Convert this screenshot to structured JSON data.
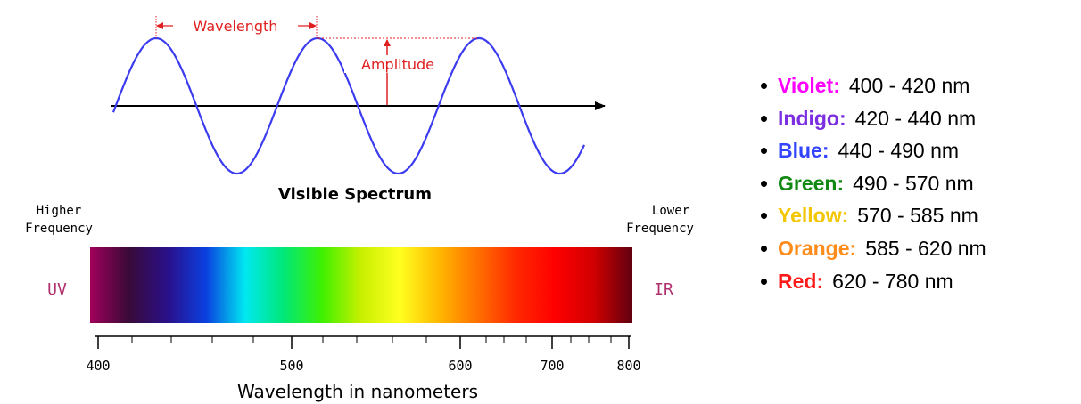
{
  "wave": {
    "wavelength_label": "Wavelength",
    "amplitude_label": "Amplitude",
    "colors": {
      "wave": "#3b3bf0",
      "annotation": "#e02020",
      "axis": "#000000"
    }
  },
  "spectrum": {
    "title": "Visible Spectrum",
    "higher_frequency": [
      "Higher",
      "Frequency"
    ],
    "lower_frequency": [
      "Lower",
      "Frequency"
    ],
    "uv_label": "UV",
    "ir_label": "IR",
    "uv_ir_color": "#b0306e",
    "xlabel": "Wavelength in nanometers",
    "ticks": [
      "400",
      "500",
      "600",
      "700",
      "800"
    ],
    "gradient_colors": [
      "#a0005a",
      "#3a0a38",
      "#2a108a",
      "#0a40e0",
      "#00e8f0",
      "#00e878",
      "#40f000",
      "#c8f000",
      "#ffff20",
      "#ffb800",
      "#ff7000",
      "#ff2800",
      "#ff0000",
      "#d00000",
      "#600010"
    ]
  },
  "legend": [
    {
      "name": "Violet:",
      "range": "400 - 420 nm",
      "color": "#ff00ff"
    },
    {
      "name": "Indigo:",
      "range": "420 - 440 nm",
      "color": "#7b2fe0"
    },
    {
      "name": "Blue:",
      "range": "440 - 490 nm",
      "color": "#3344ff"
    },
    {
      "name": "Green:",
      "range": "490 - 570 nm",
      "color": "#118811"
    },
    {
      "name": "Yellow:",
      "range": "570 - 585 nm",
      "color": "#f2c600"
    },
    {
      "name": "Orange:",
      "range": "585 - 620 nm",
      "color": "#ff8c1a"
    },
    {
      "name": "Red:",
      "range": "620 - 780 nm",
      "color": "#ff1a1a"
    }
  ]
}
